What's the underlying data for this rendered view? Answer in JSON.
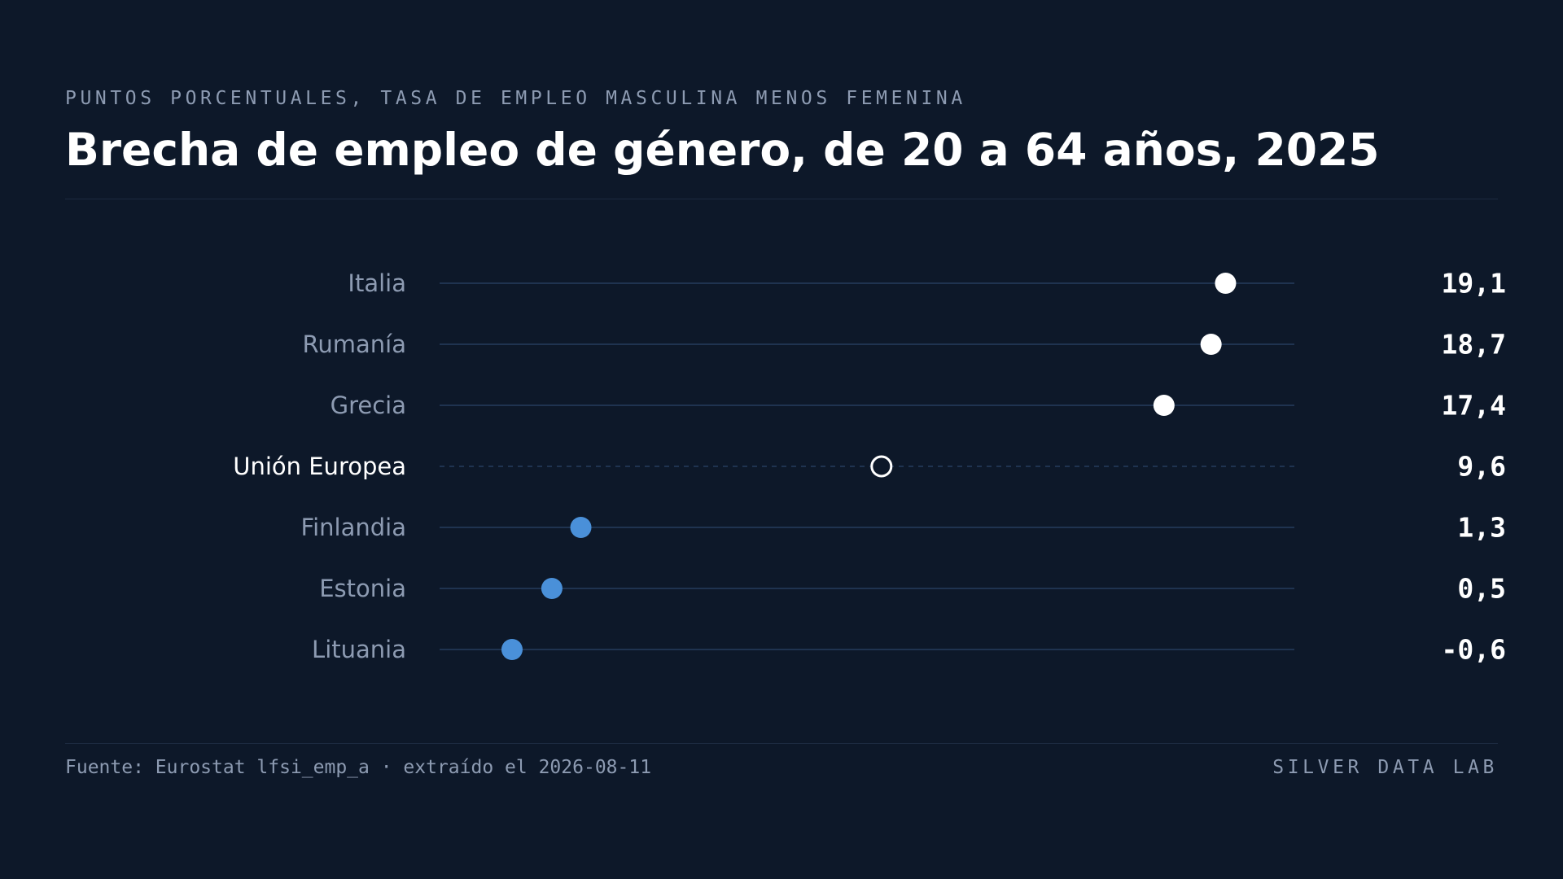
{
  "header": {
    "subtitle": "PUNTOS PORCENTUALES, TASA DE EMPLEO MASCULINA MENOS FEMENINA",
    "title": "Brecha de empleo de género, de 20 a 64 años, 2025"
  },
  "footer": {
    "source": "Fuente: Eurostat lfsi_emp_a · extraído el 2026-08-11",
    "brand": "SILVER DATA LAB"
  },
  "colors": {
    "background": "#0d1829",
    "highlight_dot": "#ffffff",
    "low_dot": "#4a90d9",
    "reference_dot_stroke": "#ffffff",
    "track_line": "#1f3350",
    "label_muted": "#8d9bb2",
    "label_reference": "#ffffff",
    "value_text": "#ffffff"
  },
  "chart_data": {
    "type": "dot",
    "categories": [
      "Italia",
      "Rumanía",
      "Grecia",
      "Unión Europea",
      "Finlandia",
      "Estonia",
      "Lituania"
    ],
    "values": [
      19.1,
      18.7,
      17.4,
      9.6,
      1.3,
      0.5,
      -0.6
    ],
    "value_labels": [
      "19,1",
      "18,7",
      "17,4",
      "9,6",
      "1,3",
      "0,5",
      "-0,6"
    ],
    "reference_category": "Unión Europea",
    "xlim": [
      -2.6,
      21.0
    ],
    "grid": false,
    "legend": "none"
  }
}
